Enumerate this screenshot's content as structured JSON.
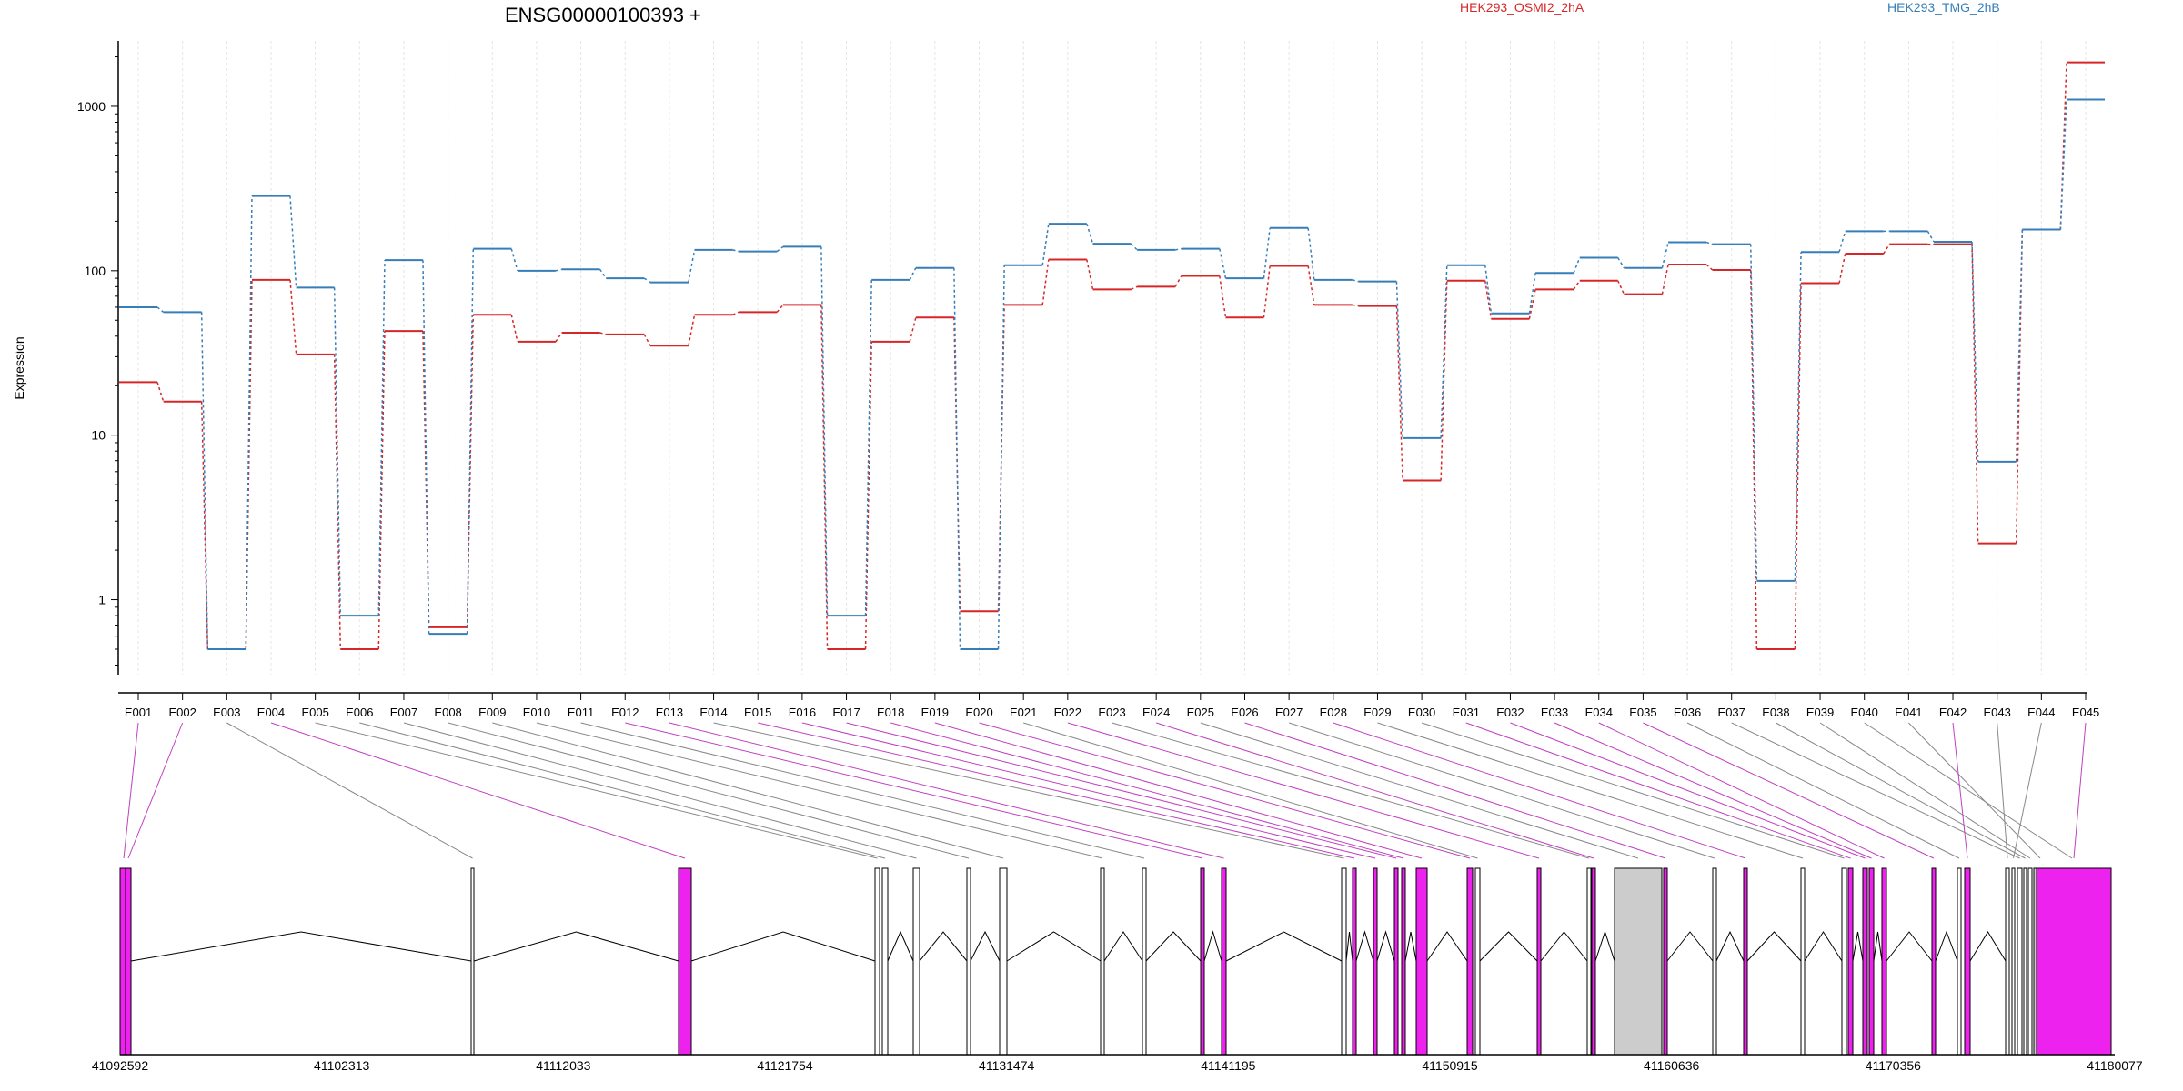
{
  "chart_data": {
    "type": "line",
    "title": "ENSG00000100393 +",
    "ylabel": "Expression",
    "yscale": "log",
    "ylim": [
      0.35,
      2500
    ],
    "yticks": [
      1,
      10,
      100,
      1000
    ],
    "ytick_labels": [
      "1",
      "10",
      "100",
      "1000"
    ],
    "grid": "vertical dotted",
    "legend_placement": "top-right",
    "categories": [
      "E001",
      "E002",
      "E003",
      "E004",
      "E005",
      "E006",
      "E007",
      "E008",
      "E009",
      "E010",
      "E011",
      "E012",
      "E013",
      "E014",
      "E015",
      "E016",
      "E017",
      "E018",
      "E019",
      "E020",
      "E021",
      "E022",
      "E023",
      "E024",
      "E025",
      "E026",
      "E027",
      "E028",
      "E029",
      "E030",
      "E031",
      "E032",
      "E033",
      "E034",
      "E035",
      "E036",
      "E037",
      "E038",
      "E039",
      "E040",
      "E041",
      "E042",
      "E043",
      "E044",
      "E045"
    ],
    "series": [
      {
        "name": "HEK293_OSMI2_2hA",
        "color": "#d62728",
        "values": [
          21,
          16,
          0.5,
          88,
          31,
          0.5,
          43,
          0.68,
          54,
          37,
          42,
          41,
          35,
          54,
          56,
          62,
          0.5,
          37,
          52,
          0.85,
          62,
          117,
          77,
          80,
          93,
          52,
          107,
          62,
          61,
          5.3,
          87,
          51,
          77,
          87,
          72,
          109,
          101,
          0.5,
          84,
          127,
          145,
          145,
          2.2,
          178,
          1850
        ]
      },
      {
        "name": "HEK293_TMG_2hB",
        "color": "#377eb8",
        "values": [
          60,
          56,
          0.5,
          285,
          79,
          0.8,
          116,
          0.62,
          136,
          100,
          102,
          90,
          85,
          134,
          131,
          140,
          0.8,
          88,
          104,
          0.5,
          108,
          193,
          146,
          134,
          136,
          90,
          182,
          88,
          86,
          9.6,
          108,
          55,
          97,
          120,
          104,
          149,
          145,
          1.3,
          130,
          174,
          174,
          150,
          6.9,
          178,
          1100
        ]
      }
    ],
    "genome_coords": [
      "41092592",
      "41102313",
      "41112033",
      "41121754",
      "41131474",
      "41141195",
      "41150915",
      "41160636",
      "41170356",
      "41180077"
    ],
    "exon_colors": {
      "highlight": "#ee22ee",
      "normal": "#ffffff",
      "selected": "#cccccc"
    },
    "highlighted_exons": [
      "E001",
      "E002",
      "E004",
      "E012",
      "E013",
      "E015",
      "E016",
      "E017",
      "E018",
      "E019",
      "E020",
      "E022",
      "E024",
      "E026",
      "E028",
      "E031",
      "E032",
      "E033",
      "E034",
      "E035",
      "E042",
      "E045"
    ]
  }
}
